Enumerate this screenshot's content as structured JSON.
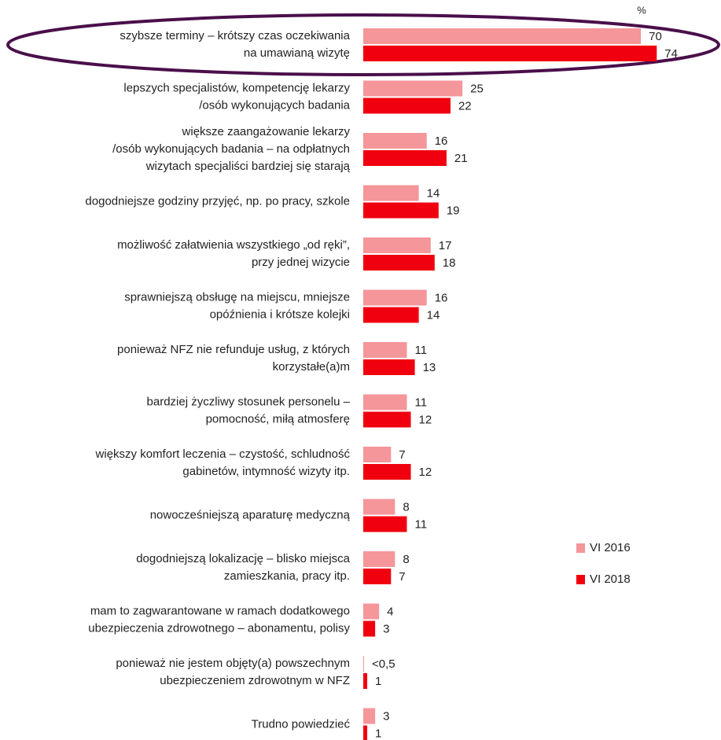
{
  "chart_data": {
    "type": "bar",
    "orientation": "horizontal",
    "unit_label": "%",
    "categories": [
      [
        "szybsze terminy – krótszy czas oczekiwania",
        "na umawianą wizytę"
      ],
      [
        "lepszych specjalistów, kompetencję lekarzy",
        "/osób wykonujących badania"
      ],
      [
        "większe zaangażowanie lekarzy",
        "/osób wykonujących badania – na odpłatnych",
        "wizytach specjaliści bardziej się starają"
      ],
      [
        "dogodniejsze godziny przyjęć, np. po pracy, szkole"
      ],
      [
        "możliwość załatwienia wszystkiego „od ręki”,",
        "przy jednej wizycie"
      ],
      [
        "sprawniejszą obsługę na miejscu, mniejsze",
        "opóźnienia i krótsze kolejki"
      ],
      [
        "ponieważ NFZ nie refunduje usług, z których",
        "korzystałe(a)m"
      ],
      [
        "bardziej życzliwy stosunek personelu –",
        "pomocność, miłą atmosferę"
      ],
      [
        "większy komfort leczenia – czystość, schludność",
        "gabinetów, intymność wizyty itp."
      ],
      [
        "nowocześniejszą aparaturę medyczną"
      ],
      [
        "dogodniejszą lokalizację – blisko miejsca",
        "zamieszkania, pracy itp."
      ],
      [
        "mam to zagwarantowane w ramach dodatkowego",
        "ubezpieczenia zdrowotnego – abonamentu, polisy"
      ],
      [
        "ponieważ nie jestem objęty(a) powszechnym",
        "ubezpieczeniem zdrowotnym w NFZ"
      ],
      [
        "Trudno powiedzieć"
      ]
    ],
    "series": [
      {
        "name": "VI 2016",
        "color": "#f4969a",
        "values": [
          70,
          25,
          16,
          14,
          17,
          16,
          11,
          11,
          7,
          8,
          8,
          4,
          0.2,
          3
        ],
        "value_labels": [
          "70",
          "25",
          "16",
          "14",
          "17",
          "16",
          "11",
          "11",
          "7",
          "8",
          "8",
          "4",
          "<0,5",
          "3"
        ]
      },
      {
        "name": "VI 2018",
        "color": "#f0000f",
        "values": [
          74,
          22,
          21,
          19,
          18,
          14,
          13,
          12,
          12,
          11,
          7,
          3,
          1,
          1
        ]
      }
    ],
    "xlim": [
      0,
      90
    ],
    "legend": "right"
  }
}
